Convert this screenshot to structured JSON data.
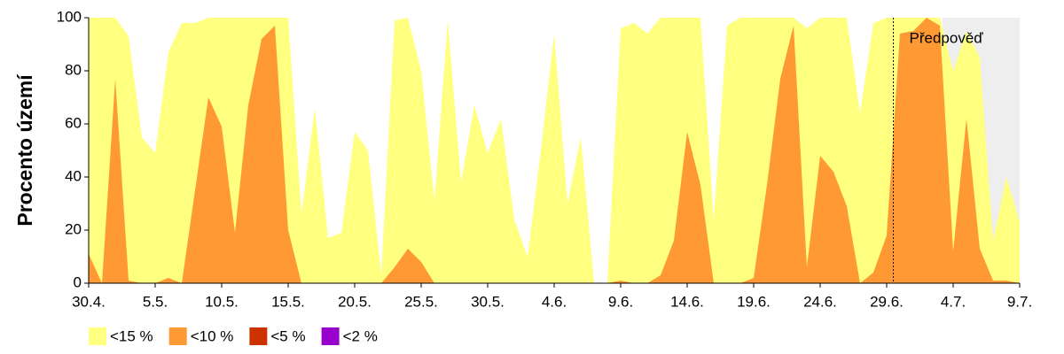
{
  "chart_data": {
    "type": "area",
    "y_label": "Procento území",
    "categories": [
      "30.4.",
      null,
      null,
      null,
      null,
      "5.5.",
      null,
      null,
      null,
      null,
      "10.5.",
      null,
      null,
      null,
      null,
      "15.5.",
      null,
      null,
      null,
      null,
      "20.5.",
      null,
      null,
      null,
      null,
      "25.5.",
      null,
      null,
      null,
      null,
      "30.5.",
      null,
      null,
      null,
      null,
      "4.6.",
      null,
      null,
      null,
      null,
      "9.6.",
      null,
      null,
      null,
      null,
      "14.6.",
      null,
      null,
      null,
      null,
      "19.6.",
      null,
      null,
      null,
      null,
      "24.6.",
      null,
      null,
      null,
      null,
      "29.6.",
      null,
      null,
      null,
      null,
      "4.7.",
      null,
      null,
      null,
      null,
      "9.7."
    ],
    "series": [
      {
        "name": "<15 %",
        "color": "#ffff80",
        "values": [
          100,
          100,
          100,
          93,
          55,
          49,
          87,
          98,
          98,
          100,
          100,
          100,
          100,
          100,
          100,
          100,
          26,
          66,
          17,
          19,
          57,
          50,
          3,
          99,
          100,
          80,
          31,
          99,
          38,
          67,
          49,
          62,
          24,
          10,
          50,
          94,
          30,
          55,
          0,
          0,
          96,
          98,
          94,
          100,
          100,
          100,
          100,
          24,
          97,
          100,
          100,
          100,
          100,
          100,
          96,
          100,
          100,
          100,
          64,
          98,
          100,
          100,
          100,
          100,
          100,
          80,
          95,
          85,
          16,
          40,
          23
        ]
      },
      {
        "name": "<10 %",
        "color": "#ff9933",
        "values": [
          11,
          0,
          77,
          1,
          0,
          0,
          2,
          0,
          35,
          70,
          59,
          19,
          67,
          92,
          97,
          20,
          0,
          0,
          0,
          0,
          0,
          0,
          0,
          6,
          13,
          8,
          0,
          0,
          0,
          0,
          0,
          0,
          0,
          0,
          0,
          0,
          0,
          0,
          0,
          0,
          1,
          0,
          0,
          3,
          16,
          57,
          37,
          0,
          0,
          0,
          2,
          37,
          77,
          97,
          6,
          48,
          42,
          29,
          0,
          4,
          18,
          94,
          95,
          100,
          97,
          12,
          62,
          13,
          1,
          1,
          0
        ]
      },
      {
        "name": "<5 %",
        "color": "#cc3300",
        "values": [
          0,
          0,
          0,
          0,
          0,
          0,
          0,
          0,
          0,
          0,
          0,
          0,
          0,
          0,
          0,
          0,
          0,
          0,
          0,
          0,
          0,
          0,
          0,
          0,
          0,
          0,
          0,
          0,
          0,
          0,
          0,
          0,
          0,
          0,
          0,
          0,
          0,
          0,
          0,
          0,
          0,
          0,
          0,
          0,
          0,
          0,
          0,
          0,
          0,
          0,
          0,
          0,
          0,
          0,
          0,
          0,
          0,
          0,
          0,
          0,
          0,
          0,
          0,
          0,
          0,
          0,
          0,
          0,
          0,
          0,
          0
        ]
      },
      {
        "name": "<2 %",
        "color": "#9900cc",
        "values": [
          0,
          0,
          0,
          0,
          0,
          0,
          0,
          0,
          0,
          0,
          0,
          0,
          0,
          0,
          0,
          0,
          0,
          0,
          0,
          0,
          0,
          0,
          0,
          0,
          0,
          0,
          0,
          0,
          0,
          0,
          0,
          0,
          0,
          0,
          0,
          0,
          0,
          0,
          0,
          0,
          0,
          0,
          0,
          0,
          0,
          0,
          0,
          0,
          0,
          0,
          0,
          0,
          0,
          0,
          0,
          0,
          0,
          0,
          0,
          0,
          0,
          0,
          0,
          0,
          0,
          0,
          0,
          0,
          0,
          0,
          0
        ]
      }
    ],
    "ylim": [
      0,
      100
    ],
    "yticks": [
      0,
      20,
      40,
      60,
      80,
      100
    ],
    "annotation": {
      "text": "Předpověď",
      "x": 60.5
    },
    "shaded_xlim": [
      64.2,
      70
    ]
  }
}
